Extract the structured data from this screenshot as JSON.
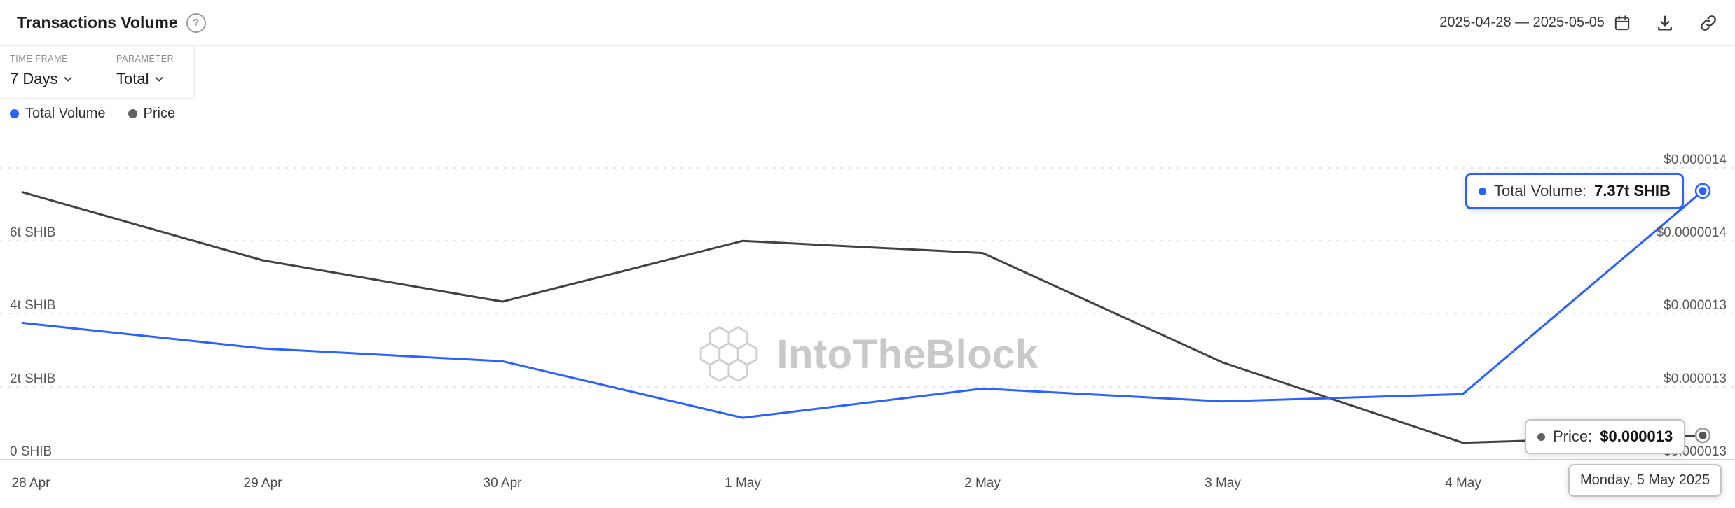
{
  "header": {
    "title": "Transactions Volume",
    "help_text": "?",
    "date_range": "2025-04-28 — 2025-05-05",
    "icons": {
      "help": "help-icon",
      "calendar": "calendar-icon",
      "download": "download-icon",
      "link": "link-icon",
      "chevron": "chevron-down-icon"
    }
  },
  "controls": [
    {
      "caption": "TIME FRAME",
      "value": "7 Days"
    },
    {
      "caption": "PARAMETER",
      "value": "Total"
    }
  ],
  "legend": [
    {
      "label": "Total Volume",
      "color": "#2962ff"
    },
    {
      "label": "Price",
      "color": "#616161"
    }
  ],
  "watermark": "IntoTheBlock",
  "chart_data": {
    "type": "line",
    "title": "Transactions Volume",
    "categories": [
      "28 Apr",
      "29 Apr",
      "30 Apr",
      "1 May",
      "2 May",
      "3 May",
      "4 May",
      "5 May"
    ],
    "x_tick_labels": [
      "28 Apr",
      "29 Apr",
      "30 Apr",
      "1 May",
      "2 May",
      "3 May",
      "4 May"
    ],
    "series": [
      {
        "name": "Total Volume",
        "unit": "t SHIB",
        "color": "#2962ff",
        "values": [
          3.75,
          3.05,
          2.7,
          1.15,
          1.95,
          1.6,
          1.8,
          7.37
        ]
      },
      {
        "name": "Price",
        "unit": "USD",
        "color": "#424242",
        "values": [
          1.39e-05,
          1.362e-05,
          1.345e-05,
          1.37e-05,
          1.365e-05,
          1.32e-05,
          1.287e-05,
          1.29e-05
        ]
      }
    ],
    "y_left": {
      "labels": [
        "6t SHIB",
        "4t SHIB",
        "2t SHIB",
        "0 SHIB"
      ],
      "range": [
        0,
        8
      ],
      "unit": "t SHIB"
    },
    "y_right": {
      "labels": [
        "$0.000014",
        "$0.0000014",
        "$0.000013",
        "$0.000013",
        "$0.000013"
      ],
      "range": [
        1.28e-05,
        1.4e-05
      ],
      "unit": "USD"
    },
    "grid": "dashed",
    "legend_position": "top-left"
  },
  "tooltips": {
    "volume": {
      "label": "Total Volume:",
      "value": "7.37t SHIB"
    },
    "price": {
      "label": "Price:",
      "value": "$0.000013"
    },
    "date": "Monday, 5 May 2025"
  },
  "colors": {
    "accent_blue": "#2962ff",
    "price_gray": "#616161",
    "grid": "#e3e3e3"
  }
}
